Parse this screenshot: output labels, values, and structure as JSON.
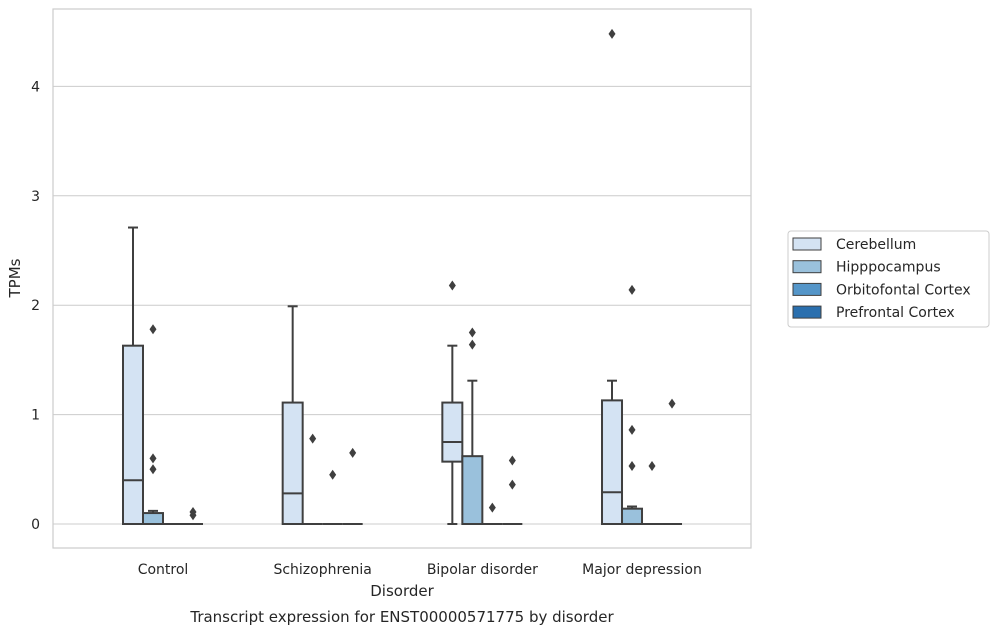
{
  "chart_data": {
    "type": "box",
    "title": "",
    "caption": "Transcript expression for ENST00000571775 by disorder",
    "xlabel": "Disorder",
    "ylabel": "TPMs",
    "ylim": [
      -0.22,
      4.72
    ],
    "yticks": [
      0,
      1,
      2,
      3,
      4
    ],
    "grid": "horizontal",
    "legend_position": "right-outside",
    "categories": [
      "Control",
      "Schizophrenia",
      "Bipolar disorder",
      "Major depression"
    ],
    "series": [
      {
        "name": "Cerebellum",
        "color": "#d4e3f3",
        "boxes": [
          {
            "q1": 0,
            "median": 0.4,
            "q3": 1.63,
            "whisker_low": 0,
            "whisker_high": 2.71,
            "outliers": []
          },
          {
            "q1": 0,
            "median": 0.28,
            "q3": 1.11,
            "whisker_low": 0,
            "whisker_high": 1.99,
            "outliers": []
          },
          {
            "q1": 0.57,
            "median": 0.75,
            "q3": 1.11,
            "whisker_low": 0,
            "whisker_high": 1.63,
            "outliers": [
              2.18
            ]
          },
          {
            "q1": 0,
            "median": 0.29,
            "q3": 1.13,
            "whisker_low": 0,
            "whisker_high": 1.31,
            "outliers": [
              4.48
            ]
          }
        ]
      },
      {
        "name": "Hipppocampus",
        "color": "#9ac1dc",
        "boxes": [
          {
            "q1": 0,
            "median": 0,
            "q3": 0.1,
            "whisker_low": 0,
            "whisker_high": 0.12,
            "outliers": [
              0.5,
              0.6,
              1.78
            ]
          },
          {
            "q1": 0,
            "median": 0,
            "q3": 0,
            "whisker_low": 0,
            "whisker_high": 0,
            "outliers": [
              0.78
            ]
          },
          {
            "q1": 0,
            "median": 0,
            "q3": 0.62,
            "whisker_low": 0,
            "whisker_high": 1.31,
            "outliers": [
              1.64,
              1.75
            ]
          },
          {
            "q1": 0,
            "median": 0,
            "q3": 0.14,
            "whisker_low": 0,
            "whisker_high": 0.16,
            "outliers": [
              0.53,
              0.86,
              2.14
            ]
          }
        ]
      },
      {
        "name": "Orbitofontal Cortex",
        "color": "#5596c9",
        "boxes": [
          {
            "q1": 0,
            "median": 0,
            "q3": 0,
            "whisker_low": 0,
            "whisker_high": 0,
            "outliers": []
          },
          {
            "q1": 0,
            "median": 0,
            "q3": 0,
            "whisker_low": 0,
            "whisker_high": 0,
            "outliers": [
              0.45
            ]
          },
          {
            "q1": 0,
            "median": 0,
            "q3": 0,
            "whisker_low": 0,
            "whisker_high": 0,
            "outliers": [
              0.15
            ]
          },
          {
            "q1": 0,
            "median": 0,
            "q3": 0,
            "whisker_low": 0,
            "whisker_high": 0,
            "outliers": [
              0.53
            ]
          }
        ]
      },
      {
        "name": "Prefrontal Cortex",
        "color": "#2a6fae",
        "boxes": [
          {
            "q1": 0,
            "median": 0,
            "q3": 0,
            "whisker_low": 0,
            "whisker_high": 0,
            "outliers": [
              0.08,
              0.11
            ]
          },
          {
            "q1": 0,
            "median": 0,
            "q3": 0,
            "whisker_low": 0,
            "whisker_high": 0,
            "outliers": [
              0.65
            ]
          },
          {
            "q1": 0,
            "median": 0,
            "q3": 0,
            "whisker_low": 0,
            "whisker_high": 0,
            "outliers": [
              0.36,
              0.58
            ]
          },
          {
            "q1": 0,
            "median": 0,
            "q3": 0,
            "whisker_low": 0,
            "whisker_high": 0,
            "outliers": [
              1.1
            ]
          }
        ]
      }
    ]
  }
}
